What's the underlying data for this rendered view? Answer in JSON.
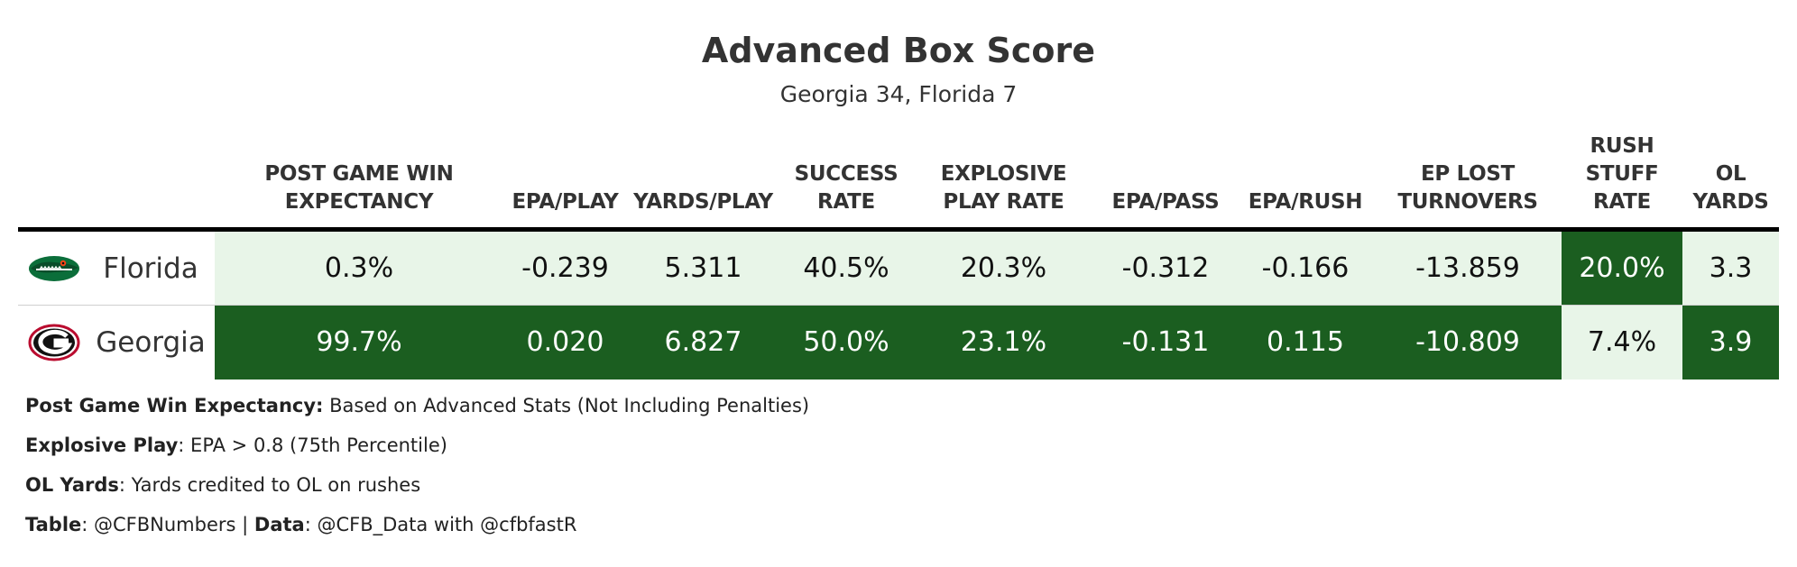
{
  "chart_data": {
    "type": "table",
    "title": "Advanced Box Score",
    "subtitle": "Georgia 34, Florida 7",
    "columns": [
      {
        "key": "wp",
        "label_lines": [
          "POST GAME WIN",
          "EXPECTANCY"
        ]
      },
      {
        "key": "epa_play",
        "label_lines": [
          "EPA/PLAY"
        ]
      },
      {
        "key": "yards_play",
        "label_lines": [
          "YARDS/PLAY"
        ]
      },
      {
        "key": "success",
        "label_lines": [
          "SUCCESS",
          "RATE"
        ]
      },
      {
        "key": "explosive",
        "label_lines": [
          "EXPLOSIVE",
          "PLAY RATE"
        ]
      },
      {
        "key": "epa_pass",
        "label_lines": [
          "EPA/PASS"
        ]
      },
      {
        "key": "epa_rush",
        "label_lines": [
          "EPA/RUSH"
        ]
      },
      {
        "key": "ep_lost",
        "label_lines": [
          "EP LOST",
          "TURNOVERS"
        ]
      },
      {
        "key": "stuff",
        "label_lines": [
          "RUSH",
          "STUFF",
          "RATE"
        ]
      },
      {
        "key": "ol",
        "label_lines": [
          "OL",
          "YARDS"
        ]
      }
    ],
    "rows": [
      {
        "team": "Florida",
        "logo_icon": "florida-gator-logo",
        "values": [
          "0.3%",
          "-0.239",
          "5.311",
          "40.5%",
          "20.3%",
          "-0.312",
          "-0.166",
          "-13.859",
          "20.0%",
          "3.3"
        ],
        "shades": [
          "light",
          "light",
          "light",
          "light",
          "light",
          "light",
          "light",
          "light",
          "dark",
          "light"
        ]
      },
      {
        "team": "Georgia",
        "logo_icon": "georgia-g-logo",
        "values": [
          "99.7%",
          "0.020",
          "6.827",
          "50.0%",
          "23.1%",
          "-0.131",
          "0.115",
          "-10.809",
          "7.4%",
          "3.9"
        ],
        "shades": [
          "dark",
          "dark",
          "dark",
          "dark",
          "dark",
          "dark",
          "dark",
          "dark",
          "light",
          "dark"
        ]
      }
    ],
    "colors": {
      "better": "#1b5e20",
      "worse": "#e8f5e8"
    }
  },
  "notes": [
    {
      "bold": "Post Game Win Expectancy:",
      "text": " Based on Advanced Stats (Not Including Penalties)"
    },
    {
      "bold": "Explosive Play",
      "text": ": EPA > 0.8 (75th Percentile)"
    },
    {
      "bold": "OL Yards",
      "text": ": Yards credited to OL on rushes"
    },
    {
      "bold": "Table",
      "text": ": @CFBNumbers | ",
      "bold2": "Data",
      "text2": ": @CFB_Data with @cfbfastR"
    }
  ]
}
